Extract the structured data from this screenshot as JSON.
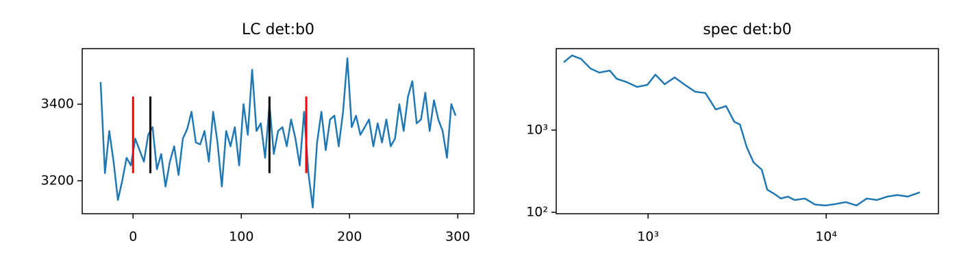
{
  "chart_data": [
    {
      "type": "line",
      "title": "LC det:b0",
      "color": "#1f77b4",
      "x": [
        -30,
        -26,
        -22,
        -18,
        -14,
        -10,
        -6,
        -2,
        2,
        6,
        10,
        14,
        18,
        22,
        26,
        30,
        34,
        38,
        42,
        46,
        50,
        54,
        58,
        62,
        66,
        70,
        74,
        78,
        82,
        86,
        90,
        94,
        98,
        102,
        106,
        110,
        114,
        118,
        122,
        126,
        130,
        134,
        138,
        142,
        146,
        150,
        154,
        158,
        162,
        166,
        170,
        174,
        178,
        182,
        186,
        190,
        194,
        198,
        202,
        206,
        210,
        214,
        218,
        222,
        226,
        230,
        234,
        238,
        242,
        246,
        250,
        254,
        258,
        262,
        266,
        270,
        274,
        278,
        282,
        286,
        290,
        294,
        298
      ],
      "values": [
        3458,
        3220,
        3330,
        3250,
        3150,
        3200,
        3260,
        3240,
        3310,
        3280,
        3250,
        3320,
        3340,
        3230,
        3270,
        3185,
        3250,
        3290,
        3215,
        3310,
        3335,
        3380,
        3300,
        3295,
        3330,
        3250,
        3380,
        3300,
        3185,
        3330,
        3290,
        3340,
        3240,
        3400,
        3320,
        3490,
        3330,
        3350,
        3260,
        3400,
        3270,
        3330,
        3340,
        3290,
        3360,
        3310,
        3240,
        3380,
        3220,
        3130,
        3300,
        3380,
        3280,
        3360,
        3370,
        3290,
        3380,
        3520,
        3340,
        3370,
        3320,
        3340,
        3360,
        3290,
        3350,
        3300,
        3360,
        3290,
        3310,
        3400,
        3330,
        3420,
        3460,
        3350,
        3360,
        3430,
        3330,
        3410,
        3360,
        3330,
        3260,
        3400,
        3370
      ],
      "vlines": [
        {
          "x": 0,
          "ymin": 3220,
          "ymax": 3420,
          "color": "#ff0000"
        },
        {
          "x": 16,
          "ymin": 3220,
          "ymax": 3420,
          "color": "#000000"
        },
        {
          "x": 126,
          "ymin": 3220,
          "ymax": 3420,
          "color": "#000000"
        },
        {
          "x": 160,
          "ymin": 3220,
          "ymax": 3420,
          "color": "#ff0000"
        }
      ],
      "xlim": [
        -47,
        315
      ],
      "ylim": [
        3114,
        3545
      ],
      "xticks": [
        0,
        100,
        200,
        300
      ],
      "yticks": [
        3200,
        3400
      ]
    },
    {
      "type": "line",
      "title": "spec det:b0",
      "color": "#1f77b4",
      "xlog": true,
      "ylog": true,
      "x": [
        336,
        374,
        420,
        475,
        533,
        610,
        666,
        760,
        867,
        991,
        1100,
        1240,
        1410,
        1610,
        1840,
        2100,
        2400,
        2740,
        3050,
        3280,
        3580,
        3910,
        4350,
        4670,
        5100,
        5570,
        6090,
        6650,
        7600,
        8670,
        9910,
        11300,
        12900,
        14800,
        16900,
        19300,
        22000,
        25100,
        28700,
        33600
      ],
      "values": [
        6680,
        8100,
        7360,
        5620,
        5010,
        5300,
        4220,
        3830,
        3350,
        3550,
        4730,
        3610,
        4380,
        3550,
        2930,
        2820,
        1780,
        1960,
        1260,
        1170,
        620,
        405,
        329,
        188,
        168,
        147,
        155,
        141,
        147,
        124,
        121,
        126,
        133,
        121,
        147,
        141,
        155,
        162,
        155,
        175
      ],
      "xlim": [
        305,
        42700
      ],
      "ylim": [
        96,
        9800
      ],
      "xticks": [
        {
          "value": 1000,
          "label": "10³"
        },
        {
          "value": 10000,
          "label": "10⁴"
        }
      ],
      "yticks": [
        {
          "value": 100,
          "label": "10²"
        },
        {
          "value": 1000,
          "label": "10³"
        }
      ]
    }
  ]
}
